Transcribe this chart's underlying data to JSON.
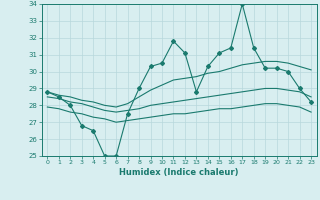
{
  "xlabel": "Humidex (Indice chaleur)",
  "x": [
    0,
    1,
    2,
    3,
    4,
    5,
    6,
    7,
    8,
    9,
    10,
    11,
    12,
    13,
    14,
    15,
    16,
    17,
    18,
    19,
    20,
    21,
    22,
    23
  ],
  "main_line": [
    28.8,
    28.5,
    28.0,
    26.8,
    26.5,
    25.0,
    25.0,
    27.5,
    29.0,
    30.3,
    30.5,
    31.8,
    31.1,
    28.8,
    30.3,
    31.1,
    31.4,
    34.0,
    31.4,
    30.2,
    30.2,
    30.0,
    29.0,
    28.2
  ],
  "upper_line": [
    28.8,
    28.6,
    28.5,
    28.3,
    28.2,
    28.0,
    27.9,
    28.1,
    28.5,
    28.9,
    29.2,
    29.5,
    29.6,
    29.7,
    29.9,
    30.0,
    30.2,
    30.4,
    30.5,
    30.6,
    30.6,
    30.5,
    30.3,
    30.1
  ],
  "mid_line": [
    28.5,
    28.4,
    28.2,
    28.1,
    27.9,
    27.7,
    27.6,
    27.7,
    27.8,
    28.0,
    28.1,
    28.2,
    28.3,
    28.4,
    28.5,
    28.6,
    28.7,
    28.8,
    28.9,
    29.0,
    29.0,
    28.9,
    28.8,
    28.5
  ],
  "lower_line": [
    27.9,
    27.8,
    27.6,
    27.5,
    27.3,
    27.2,
    27.0,
    27.1,
    27.2,
    27.3,
    27.4,
    27.5,
    27.5,
    27.6,
    27.7,
    27.8,
    27.8,
    27.9,
    28.0,
    28.1,
    28.1,
    28.0,
    27.9,
    27.6
  ],
  "line_color": "#1a7a6e",
  "bg_color": "#d8eef0",
  "grid_color": "#b8d8dc",
  "ylim": [
    25,
    34
  ],
  "yticks": [
    25,
    26,
    27,
    28,
    29,
    30,
    31,
    32,
    33,
    34
  ]
}
